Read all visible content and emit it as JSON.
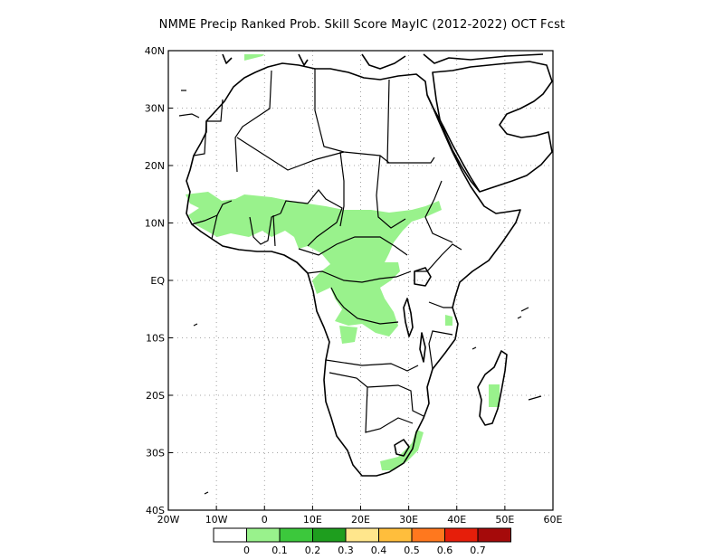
{
  "title": "NMME Precip Ranked Prob. Skill Score MayIC (2012-2022) OCT Fcst",
  "map": {
    "lon_ticks": [
      "20W",
      "10W",
      "0",
      "10E",
      "20E",
      "30E",
      "40E",
      "50E",
      "60E"
    ],
    "lat_ticks": [
      "40N",
      "30N",
      "20N",
      "10N",
      "EQ",
      "10S",
      "20S",
      "30S",
      "40S"
    ],
    "lon_values": [
      -20,
      -10,
      0,
      10,
      20,
      30,
      40,
      50,
      60
    ],
    "lat_values": [
      40,
      30,
      20,
      10,
      0,
      -10,
      -20,
      -30,
      -40
    ],
    "extent": {
      "lon": [
        -20,
        60
      ],
      "lat": [
        -40,
        40
      ]
    },
    "grid": "dotted",
    "colors": {
      "coast": "#000000",
      "skill_low": "#99f28c",
      "grid": "#8a8a8a"
    }
  },
  "colorbar": {
    "labels": [
      "0",
      "0.1",
      "0.2",
      "0.3",
      "0.4",
      "0.5",
      "0.6",
      "0.7"
    ],
    "colors": [
      "#ffffff",
      "#99f28c",
      "#3cc83c",
      "#1e9e1e",
      "#ffe68c",
      "#ffbe3c",
      "#ff781e",
      "#e61e0a",
      "#a50a0a"
    ]
  }
}
